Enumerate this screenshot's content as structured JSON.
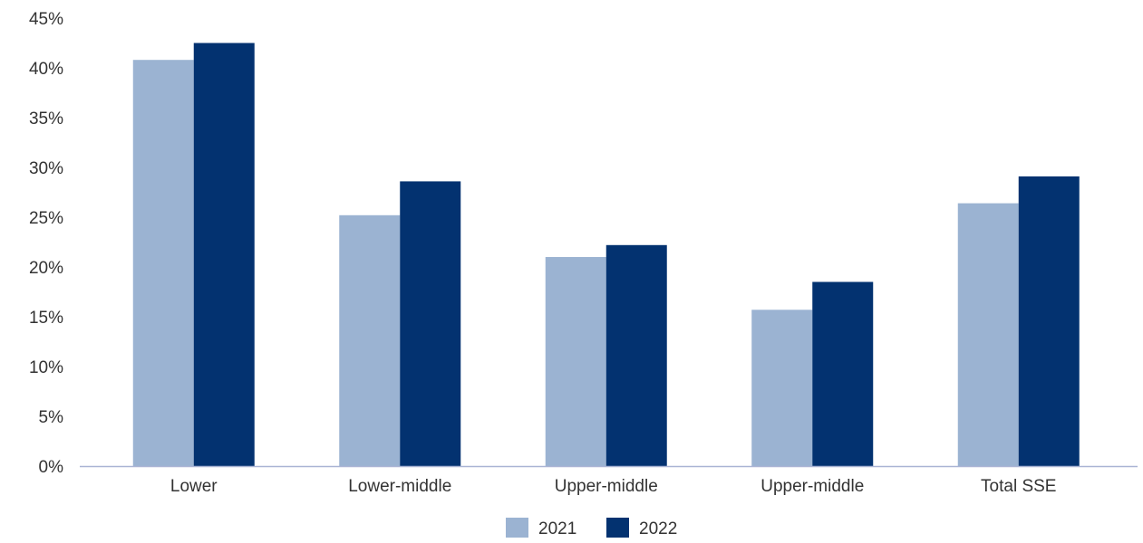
{
  "chart_data": {
    "type": "bar",
    "title": "",
    "xlabel": "",
    "ylabel": "",
    "categories": [
      "Lower",
      "Lower-middle",
      "Upper-middle",
      "Upper-middle",
      "Total SSE"
    ],
    "series": [
      {
        "name": "2021",
        "values": [
          40.8,
          25.2,
          21.0,
          15.7,
          26.4
        ],
        "color": "#9bb3d2"
      },
      {
        "name": "2022",
        "values": [
          42.5,
          28.6,
          22.2,
          18.5,
          29.1
        ],
        "color": "#033270"
      }
    ],
    "ylim": [
      0,
      45
    ],
    "yticks": [
      0,
      5,
      10,
      15,
      20,
      25,
      30,
      35,
      40,
      45
    ],
    "ytick_labels": [
      "0%",
      "5%",
      "10%",
      "15%",
      "20%",
      "25%",
      "30%",
      "35%",
      "40%",
      "45%"
    ],
    "grid": false,
    "legend": "bottom-center",
    "axis_color": "#aab4d4"
  }
}
